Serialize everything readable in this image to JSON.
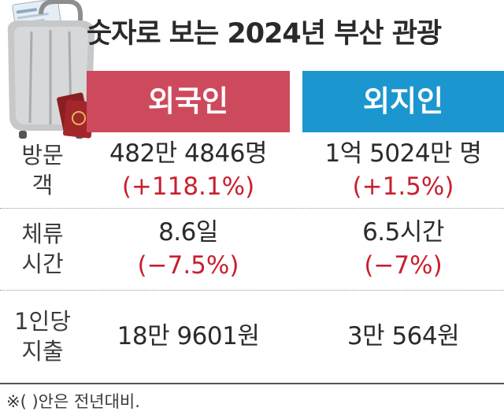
{
  "title": "숫자로 보는 2024년 부산 관광",
  "columns": {
    "foreign": "외국인",
    "domestic": "외지인"
  },
  "rows": [
    {
      "label": "방문객",
      "foreign_value": "482만 4846명",
      "foreign_change": "(+118.1%)",
      "domestic_value": "1억 5024만 명",
      "domestic_change": "(+1.5%)"
    },
    {
      "label": "체류시간",
      "foreign_value": "8.6일",
      "foreign_change": "(−7.5%)",
      "domestic_value": "6.5시간",
      "domestic_change": "(−7%)"
    },
    {
      "label": "1인당지출",
      "foreign_value": "18만 9601원",
      "domestic_value": "3만 564원"
    }
  ],
  "note": "※(   )안은 전년대비.",
  "colors": {
    "foreign_header": "#cd4a5c",
    "domestic_header": "#1c96cf",
    "change_text": "#c8202f"
  },
  "illustration": "luggage-with-passports"
}
